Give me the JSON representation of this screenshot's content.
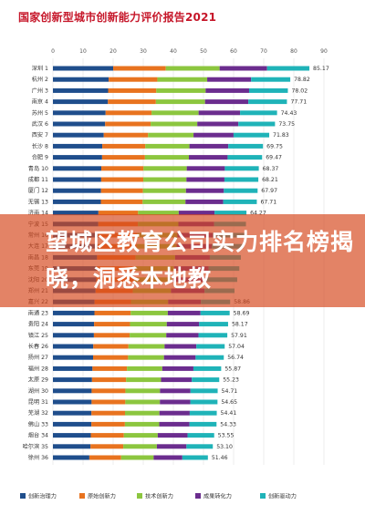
{
  "chart_data": {
    "type": "bar",
    "orientation": "horizontal",
    "stacked": true,
    "title": "国家创新型城市创新能力评价报告2021",
    "xlim": [
      0,
      100
    ],
    "x_ticks": [
      "0",
      "10",
      "20",
      "30",
      "40",
      "50",
      "60",
      "70",
      "80",
      "90"
    ],
    "grid": true,
    "legend_position": "bottom",
    "categories": [
      "深圳 1",
      "杭州 2",
      "广州 3",
      "南京 4",
      "苏州 5",
      "武汉 6",
      "西安 7",
      "长沙 8",
      "合肥 9",
      "青岛 10",
      "成都 11",
      "厦门 12",
      "无锡 13",
      "济南 14",
      "宁波 15",
      "常州 16",
      "大连 17",
      "南昌 18",
      "东莞 19",
      "沈阳 20",
      "郑州 21",
      "嘉兴 22",
      "南通 23",
      "贵阳 24",
      "镇江 25",
      "长春 26",
      "扬州 27",
      "福州 28",
      "太原 29",
      "湖州 30",
      "昆明 31",
      "芜湖 32",
      "佛山 33",
      "烟台 34",
      "哈尔滨 35",
      "徐州 36"
    ],
    "totals": [
      85.17,
      78.82,
      78.02,
      77.71,
      74.43,
      73.75,
      71.83,
      69.75,
      69.47,
      68.37,
      68.21,
      67.97,
      67.71,
      64.27,
      64.1,
      63.6,
      63.2,
      62.4,
      61.9,
      61.2,
      60.3,
      58.86,
      58.69,
      58.17,
      57.91,
      57.04,
      56.74,
      55.87,
      55.23,
      54.71,
      54.65,
      54.41,
      54.33,
      53.55,
      53.1,
      51.46
    ],
    "total_labels": [
      "85.17",
      "78.82",
      "78.02",
      "77.71",
      "74.43",
      "73.75",
      "71.83",
      "69.75",
      "69.47",
      "68.37",
      "68.21",
      "67.97",
      "67.71",
      "64.27",
      "",
      "",
      "",
      "",
      "",
      "",
      "",
      "58.86",
      "58.69",
      "58.17",
      "57.91",
      "57.04",
      "56.74",
      "55.87",
      "55.23",
      "54.71",
      "54.65",
      "54.41",
      "54.33",
      "53.55",
      "53.10",
      "51.46"
    ],
    "series": [
      {
        "name": "创新治理力",
        "color": "#1f4e8c"
      },
      {
        "name": "原始创新力",
        "color": "#e8731f"
      },
      {
        "name": "技术创新力",
        "color": "#8cc63f"
      },
      {
        "name": "成果转化力",
        "color": "#6b2d8e"
      },
      {
        "name": "创新驱动力",
        "color": "#1fb3b8"
      }
    ]
  },
  "banner": {
    "text": "望城区教育公司实力排名榜揭晓，洞悉本地教"
  }
}
